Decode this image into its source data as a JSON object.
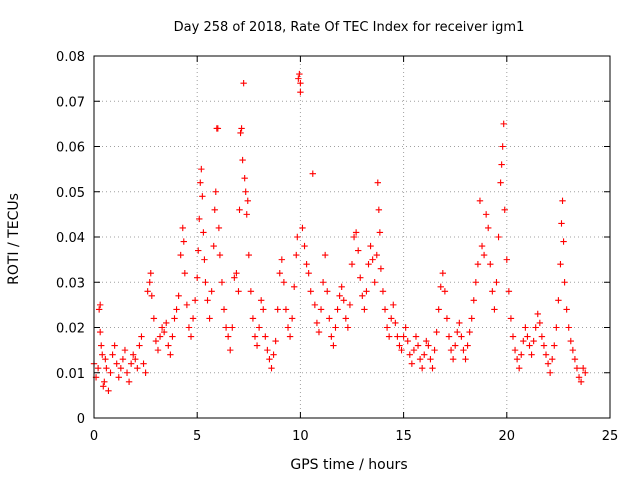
{
  "chart_data": {
    "type": "scatter",
    "title": "Day 258 of 2018, Rate Of TEC Index for receiver igm1",
    "xlabel": "GPS time / hours",
    "ylabel": "ROTI / TECUs",
    "xlim": [
      0,
      25
    ],
    "ylim": [
      0,
      0.08
    ],
    "x_ticks": [
      0,
      5,
      10,
      15,
      20,
      25
    ],
    "x_tick_labels": [
      "0",
      "5",
      "10",
      "15",
      "20",
      "25"
    ],
    "y_ticks": [
      0,
      0.01,
      0.02,
      0.03,
      0.04,
      0.05,
      0.06,
      0.07,
      0.08
    ],
    "y_tick_labels": [
      "0",
      "0.01",
      "0.02",
      "0.03",
      "0.04",
      "0.05",
      "0.06",
      "0.07",
      "0.08"
    ],
    "grid": true,
    "marker": "+",
    "color": "#ff0000",
    "series": [
      {
        "name": "ROTI",
        "points": [
          [
            0.0,
            0.012
          ],
          [
            0.1,
            0.009
          ],
          [
            0.2,
            0.011
          ],
          [
            0.25,
            0.024
          ],
          [
            0.3,
            0.025
          ],
          [
            0.3,
            0.019
          ],
          [
            0.35,
            0.016
          ],
          [
            0.4,
            0.014
          ],
          [
            0.45,
            0.007
          ],
          [
            0.5,
            0.008
          ],
          [
            0.55,
            0.013
          ],
          [
            0.6,
            0.011
          ],
          [
            0.7,
            0.006
          ],
          [
            0.8,
            0.01
          ],
          [
            0.9,
            0.014
          ],
          [
            1.0,
            0.016
          ],
          [
            1.1,
            0.012
          ],
          [
            1.2,
            0.009
          ],
          [
            1.3,
            0.011
          ],
          [
            1.4,
            0.013
          ],
          [
            1.5,
            0.015
          ],
          [
            1.6,
            0.01
          ],
          [
            1.7,
            0.008
          ],
          [
            1.8,
            0.012
          ],
          [
            1.9,
            0.014
          ],
          [
            2.0,
            0.013
          ],
          [
            2.1,
            0.011
          ],
          [
            2.2,
            0.016
          ],
          [
            2.3,
            0.018
          ],
          [
            2.4,
            0.012
          ],
          [
            2.5,
            0.01
          ],
          [
            2.6,
            0.028
          ],
          [
            2.7,
            0.03
          ],
          [
            2.75,
            0.032
          ],
          [
            2.8,
            0.027
          ],
          [
            2.9,
            0.022
          ],
          [
            3.0,
            0.017
          ],
          [
            3.1,
            0.015
          ],
          [
            3.2,
            0.018
          ],
          [
            3.3,
            0.02
          ],
          [
            3.4,
            0.019
          ],
          [
            3.5,
            0.021
          ],
          [
            3.6,
            0.016
          ],
          [
            3.7,
            0.014
          ],
          [
            3.8,
            0.018
          ],
          [
            3.9,
            0.022
          ],
          [
            4.0,
            0.024
          ],
          [
            4.1,
            0.027
          ],
          [
            4.2,
            0.036
          ],
          [
            4.3,
            0.042
          ],
          [
            4.35,
            0.039
          ],
          [
            4.4,
            0.032
          ],
          [
            4.5,
            0.025
          ],
          [
            4.6,
            0.02
          ],
          [
            4.7,
            0.018
          ],
          [
            4.8,
            0.022
          ],
          [
            4.9,
            0.026
          ],
          [
            5.0,
            0.031
          ],
          [
            5.05,
            0.037
          ],
          [
            5.1,
            0.044
          ],
          [
            5.15,
            0.052
          ],
          [
            5.2,
            0.055
          ],
          [
            5.25,
            0.049
          ],
          [
            5.3,
            0.041
          ],
          [
            5.35,
            0.035
          ],
          [
            5.4,
            0.03
          ],
          [
            5.5,
            0.026
          ],
          [
            5.6,
            0.022
          ],
          [
            5.7,
            0.028
          ],
          [
            5.8,
            0.038
          ],
          [
            5.85,
            0.046
          ],
          [
            5.9,
            0.05
          ],
          [
            5.95,
            0.064
          ],
          [
            6.0,
            0.064
          ],
          [
            6.05,
            0.042
          ],
          [
            6.1,
            0.036
          ],
          [
            6.2,
            0.03
          ],
          [
            6.3,
            0.024
          ],
          [
            6.4,
            0.02
          ],
          [
            6.5,
            0.018
          ],
          [
            6.6,
            0.015
          ],
          [
            6.7,
            0.02
          ],
          [
            6.8,
            0.031
          ],
          [
            6.9,
            0.032
          ],
          [
            7.0,
            0.028
          ],
          [
            7.05,
            0.046
          ],
          [
            7.1,
            0.063
          ],
          [
            7.15,
            0.064
          ],
          [
            7.2,
            0.057
          ],
          [
            7.25,
            0.074
          ],
          [
            7.3,
            0.053
          ],
          [
            7.35,
            0.05
          ],
          [
            7.4,
            0.045
          ],
          [
            7.45,
            0.048
          ],
          [
            7.5,
            0.036
          ],
          [
            7.6,
            0.028
          ],
          [
            7.7,
            0.022
          ],
          [
            7.8,
            0.018
          ],
          [
            7.9,
            0.016
          ],
          [
            8.0,
            0.02
          ],
          [
            8.1,
            0.026
          ],
          [
            8.2,
            0.024
          ],
          [
            8.3,
            0.018
          ],
          [
            8.4,
            0.015
          ],
          [
            8.5,
            0.013
          ],
          [
            8.6,
            0.011
          ],
          [
            8.7,
            0.014
          ],
          [
            8.8,
            0.017
          ],
          [
            8.9,
            0.024
          ],
          [
            9.0,
            0.032
          ],
          [
            9.1,
            0.035
          ],
          [
            9.2,
            0.03
          ],
          [
            9.3,
            0.024
          ],
          [
            9.4,
            0.02
          ],
          [
            9.5,
            0.018
          ],
          [
            9.6,
            0.022
          ],
          [
            9.7,
            0.029
          ],
          [
            9.8,
            0.036
          ],
          [
            9.85,
            0.04
          ],
          [
            9.9,
            0.075
          ],
          [
            9.95,
            0.076
          ],
          [
            10.0,
            0.074
          ],
          [
            10.0,
            0.072
          ],
          [
            10.1,
            0.042
          ],
          [
            10.2,
            0.038
          ],
          [
            10.3,
            0.034
          ],
          [
            10.4,
            0.032
          ],
          [
            10.5,
            0.028
          ],
          [
            10.6,
            0.054
          ],
          [
            10.7,
            0.025
          ],
          [
            10.8,
            0.021
          ],
          [
            10.9,
            0.019
          ],
          [
            11.0,
            0.024
          ],
          [
            11.1,
            0.03
          ],
          [
            11.2,
            0.036
          ],
          [
            11.3,
            0.028
          ],
          [
            11.4,
            0.022
          ],
          [
            11.5,
            0.018
          ],
          [
            11.6,
            0.016
          ],
          [
            11.7,
            0.02
          ],
          [
            11.8,
            0.024
          ],
          [
            11.9,
            0.027
          ],
          [
            12.0,
            0.029
          ],
          [
            12.1,
            0.026
          ],
          [
            12.2,
            0.022
          ],
          [
            12.3,
            0.02
          ],
          [
            12.4,
            0.025
          ],
          [
            12.5,
            0.034
          ],
          [
            12.6,
            0.04
          ],
          [
            12.7,
            0.041
          ],
          [
            12.8,
            0.037
          ],
          [
            12.9,
            0.031
          ],
          [
            13.0,
            0.027
          ],
          [
            13.1,
            0.024
          ],
          [
            13.2,
            0.028
          ],
          [
            13.3,
            0.034
          ],
          [
            13.4,
            0.038
          ],
          [
            13.5,
            0.035
          ],
          [
            13.6,
            0.03
          ],
          [
            13.7,
            0.036
          ],
          [
            13.75,
            0.052
          ],
          [
            13.8,
            0.046
          ],
          [
            13.85,
            0.041
          ],
          [
            13.9,
            0.033
          ],
          [
            14.0,
            0.028
          ],
          [
            14.1,
            0.024
          ],
          [
            14.2,
            0.02
          ],
          [
            14.3,
            0.018
          ],
          [
            14.4,
            0.022
          ],
          [
            14.5,
            0.025
          ],
          [
            14.6,
            0.021
          ],
          [
            14.7,
            0.018
          ],
          [
            14.8,
            0.016
          ],
          [
            14.9,
            0.015
          ],
          [
            15.0,
            0.018
          ],
          [
            15.1,
            0.02
          ],
          [
            15.2,
            0.017
          ],
          [
            15.3,
            0.014
          ],
          [
            15.4,
            0.012
          ],
          [
            15.5,
            0.015
          ],
          [
            15.6,
            0.018
          ],
          [
            15.7,
            0.016
          ],
          [
            15.8,
            0.013
          ],
          [
            15.9,
            0.011
          ],
          [
            16.0,
            0.014
          ],
          [
            16.1,
            0.017
          ],
          [
            16.2,
            0.016
          ],
          [
            16.3,
            0.013
          ],
          [
            16.4,
            0.011
          ],
          [
            16.5,
            0.015
          ],
          [
            16.6,
            0.019
          ],
          [
            16.7,
            0.024
          ],
          [
            16.8,
            0.029
          ],
          [
            16.9,
            0.032
          ],
          [
            17.0,
            0.028
          ],
          [
            17.1,
            0.022
          ],
          [
            17.2,
            0.018
          ],
          [
            17.3,
            0.015
          ],
          [
            17.4,
            0.013
          ],
          [
            17.5,
            0.016
          ],
          [
            17.6,
            0.019
          ],
          [
            17.7,
            0.021
          ],
          [
            17.8,
            0.018
          ],
          [
            17.9,
            0.015
          ],
          [
            18.0,
            0.013
          ],
          [
            18.1,
            0.016
          ],
          [
            18.2,
            0.019
          ],
          [
            18.3,
            0.022
          ],
          [
            18.4,
            0.026
          ],
          [
            18.5,
            0.03
          ],
          [
            18.6,
            0.034
          ],
          [
            18.7,
            0.048
          ],
          [
            18.8,
            0.038
          ],
          [
            18.9,
            0.036
          ],
          [
            19.0,
            0.045
          ],
          [
            19.1,
            0.042
          ],
          [
            19.2,
            0.034
          ],
          [
            19.3,
            0.028
          ],
          [
            19.4,
            0.024
          ],
          [
            19.5,
            0.03
          ],
          [
            19.6,
            0.04
          ],
          [
            19.7,
            0.052
          ],
          [
            19.75,
            0.056
          ],
          [
            19.8,
            0.06
          ],
          [
            19.85,
            0.065
          ],
          [
            19.9,
            0.046
          ],
          [
            20.0,
            0.035
          ],
          [
            20.1,
            0.028
          ],
          [
            20.2,
            0.022
          ],
          [
            20.3,
            0.018
          ],
          [
            20.4,
            0.015
          ],
          [
            20.5,
            0.013
          ],
          [
            20.6,
            0.011
          ],
          [
            20.7,
            0.014
          ],
          [
            20.8,
            0.017
          ],
          [
            20.9,
            0.02
          ],
          [
            21.0,
            0.018
          ],
          [
            21.1,
            0.016
          ],
          [
            21.2,
            0.014
          ],
          [
            21.3,
            0.017
          ],
          [
            21.4,
            0.02
          ],
          [
            21.5,
            0.023
          ],
          [
            21.6,
            0.021
          ],
          [
            21.7,
            0.018
          ],
          [
            21.8,
            0.016
          ],
          [
            21.9,
            0.014
          ],
          [
            22.0,
            0.012
          ],
          [
            22.1,
            0.01
          ],
          [
            22.2,
            0.013
          ],
          [
            22.3,
            0.016
          ],
          [
            22.4,
            0.02
          ],
          [
            22.5,
            0.026
          ],
          [
            22.6,
            0.034
          ],
          [
            22.65,
            0.043
          ],
          [
            22.7,
            0.048
          ],
          [
            22.75,
            0.039
          ],
          [
            22.8,
            0.03
          ],
          [
            22.9,
            0.024
          ],
          [
            23.0,
            0.02
          ],
          [
            23.1,
            0.017
          ],
          [
            23.2,
            0.015
          ],
          [
            23.3,
            0.013
          ],
          [
            23.4,
            0.011
          ],
          [
            23.5,
            0.009
          ],
          [
            23.6,
            0.008
          ],
          [
            23.7,
            0.011
          ],
          [
            23.8,
            0.01
          ]
        ]
      }
    ]
  }
}
